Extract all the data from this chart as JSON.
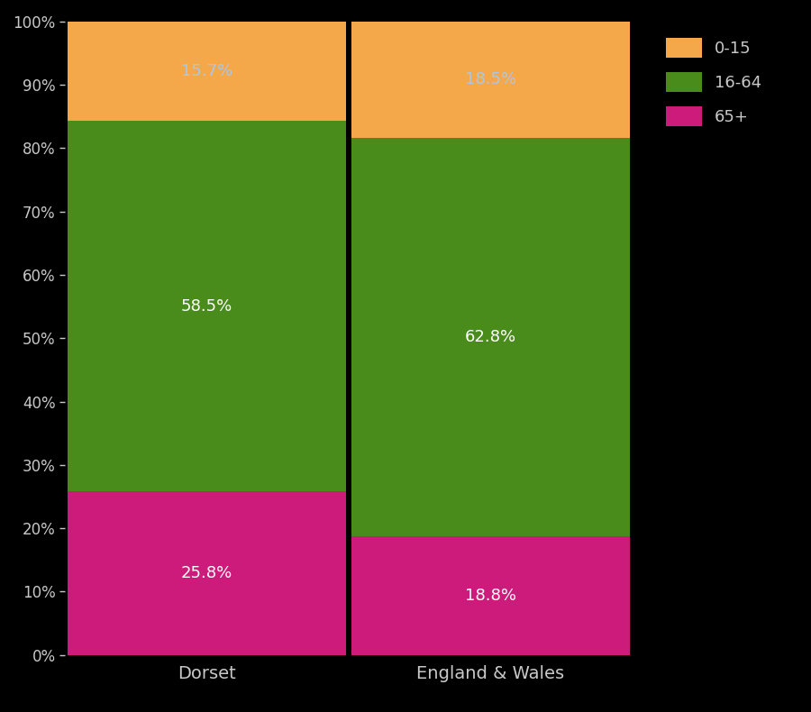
{
  "categories": [
    "Dorset",
    "England & Wales"
  ],
  "segments": {
    "65+": [
      25.8,
      18.8
    ],
    "16-64": [
      58.5,
      62.8
    ],
    "0-15": [
      15.7,
      18.5
    ]
  },
  "colors": {
    "65+": "#cc1b7a",
    "16-64": "#4a8c1c",
    "0-15": "#f5a84a"
  },
  "label_colors": {
    "65+": "white",
    "16-64": "white",
    "0-15": "#a8c8e8"
  },
  "background_color": "#000000",
  "text_color": "#c8c8c8",
  "ylim": [
    0,
    100
  ],
  "bar_width": 0.98,
  "legend_labels": [
    "0-15",
    "16-64",
    "65+"
  ],
  "tick_labels": [
    "0%",
    "10%",
    "20%",
    "30%",
    "40%",
    "50%",
    "60%",
    "70%",
    "80%",
    "90%",
    "100%"
  ]
}
